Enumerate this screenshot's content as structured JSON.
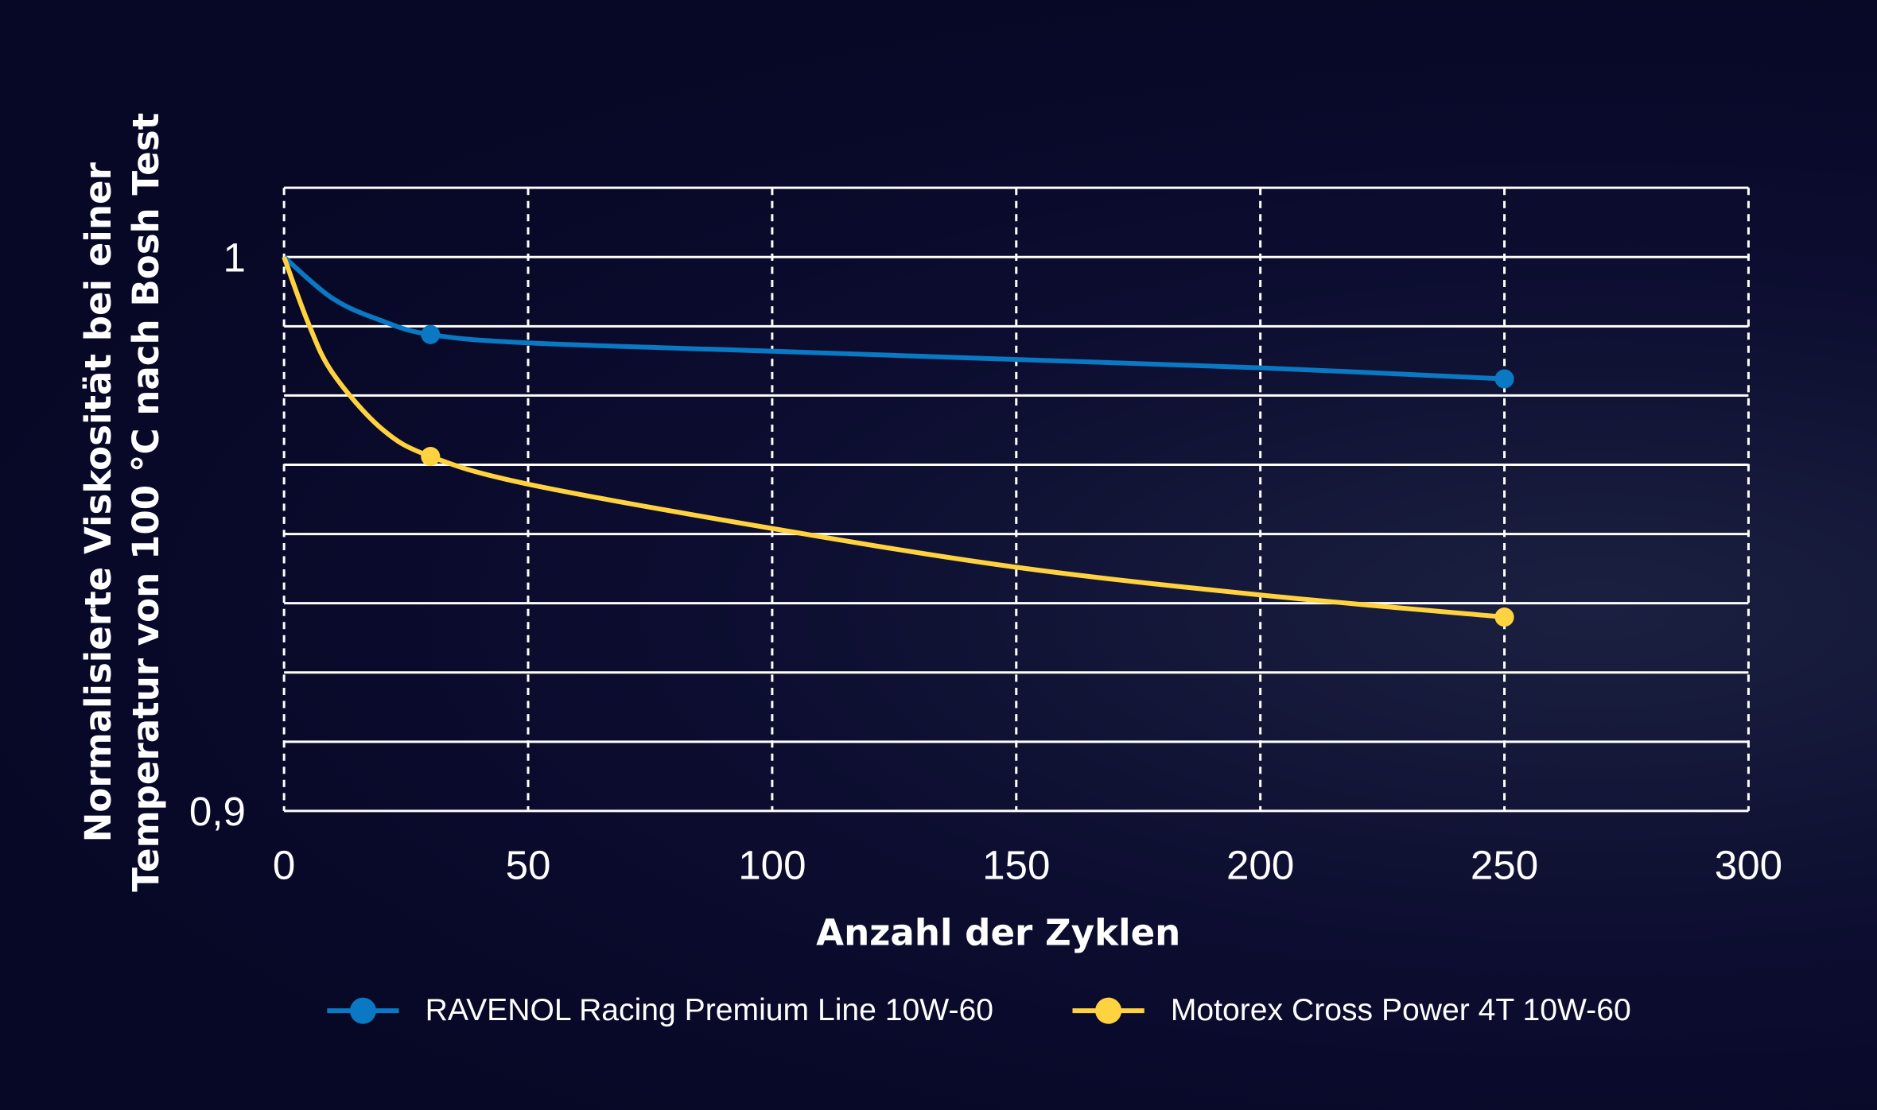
{
  "chart_data": {
    "type": "line",
    "xlabel": "Anzahl der Zyklen",
    "ylabel_lines": [
      "Normalisierte Viskosität bei einer",
      "Temperatur von 100 °C nach Bosh Test"
    ],
    "xlim": [
      0,
      300
    ],
    "ylim": [
      0.9,
      1.0125
    ],
    "xticks": [
      0,
      50,
      100,
      150,
      200,
      250,
      300
    ],
    "xtick_labels": [
      "0",
      "50",
      "100",
      "150",
      "200",
      "250",
      "300"
    ],
    "ytick_labels": [
      {
        "v": 1,
        "label": "1"
      },
      {
        "v": 0.9,
        "label": "0,9"
      }
    ],
    "ygrid_step": 0.0125,
    "grid": true,
    "legend_position": "bottom",
    "series": [
      {
        "name": "RAVENOL Racing Premium Line 10W-60",
        "color": "#0a78c2",
        "curve": [
          [
            0,
            1
          ],
          [
            10,
            0.9925
          ],
          [
            20,
            0.9885
          ],
          [
            30,
            0.986
          ],
          [
            50,
            0.9845
          ],
          [
            100,
            0.983
          ],
          [
            150,
            0.9815
          ],
          [
            200,
            0.98
          ],
          [
            250,
            0.978
          ]
        ],
        "markers": [
          [
            30,
            0.986
          ],
          [
            250,
            0.978
          ]
        ]
      },
      {
        "name": "Motorex Cross Power 4T 10W-60",
        "color": "#ffd23f",
        "curve": [
          [
            0,
            1
          ],
          [
            5,
            0.988
          ],
          [
            10,
            0.979
          ],
          [
            20,
            0.969
          ],
          [
            30,
            0.964
          ],
          [
            50,
            0.959
          ],
          [
            100,
            0.951
          ],
          [
            150,
            0.944
          ],
          [
            200,
            0.939
          ],
          [
            250,
            0.935
          ]
        ],
        "markers": [
          [
            30,
            0.964
          ],
          [
            250,
            0.935
          ]
        ]
      }
    ]
  }
}
